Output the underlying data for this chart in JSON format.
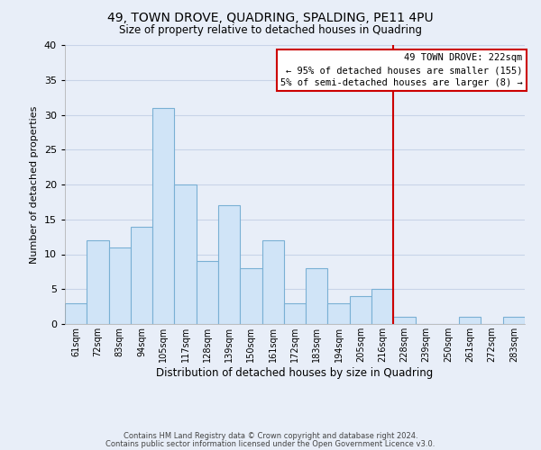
{
  "title": "49, TOWN DROVE, QUADRING, SPALDING, PE11 4PU",
  "subtitle": "Size of property relative to detached houses in Quadring",
  "xlabel": "Distribution of detached houses by size in Quadring",
  "ylabel": "Number of detached properties",
  "bin_labels": [
    "61sqm",
    "72sqm",
    "83sqm",
    "94sqm",
    "105sqm",
    "117sqm",
    "128sqm",
    "139sqm",
    "150sqm",
    "161sqm",
    "172sqm",
    "183sqm",
    "194sqm",
    "205sqm",
    "216sqm",
    "228sqm",
    "239sqm",
    "250sqm",
    "261sqm",
    "272sqm",
    "283sqm"
  ],
  "bar_values": [
    3,
    12,
    11,
    14,
    31,
    20,
    9,
    17,
    8,
    12,
    3,
    8,
    3,
    4,
    5,
    1,
    0,
    0,
    1,
    0,
    1
  ],
  "bar_color": "#d0e4f7",
  "bar_edge_color": "#7ab0d4",
  "vline_x_idx": 15,
  "vline_color": "#cc0000",
  "annotation_text": "49 TOWN DROVE: 222sqm\n← 95% of detached houses are smaller (155)\n5% of semi-detached houses are larger (8) →",
  "annotation_box_color": "#ffffff",
  "annotation_box_edge": "#cc0000",
  "ylim": [
    0,
    40
  ],
  "yticks": [
    0,
    5,
    10,
    15,
    20,
    25,
    30,
    35,
    40
  ],
  "grid_color": "#c8d4e8",
  "bg_color": "#e8eef8",
  "footer1": "Contains HM Land Registry data © Crown copyright and database right 2024.",
  "footer2": "Contains public sector information licensed under the Open Government Licence v3.0."
}
